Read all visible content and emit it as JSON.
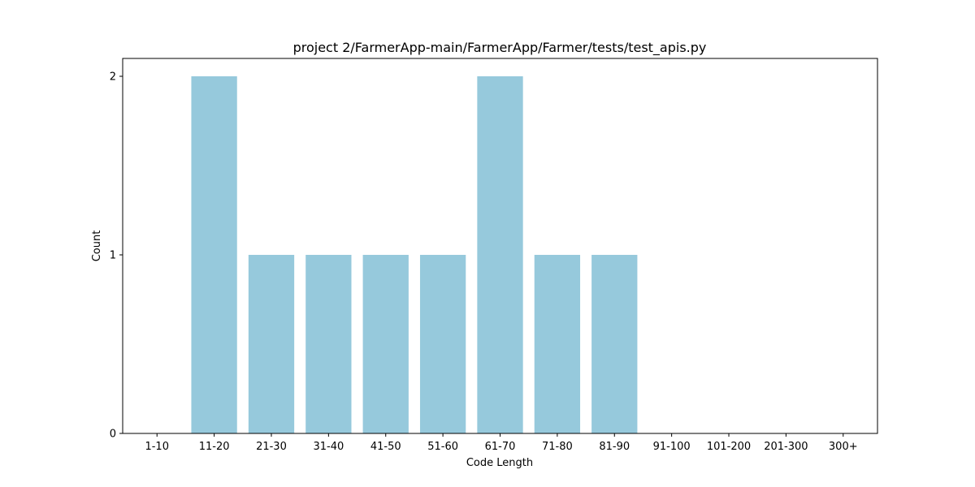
{
  "chart_data": {
    "type": "bar",
    "title": "project 2/FarmerApp-main/FarmerApp/Farmer/tests/test_apis.py",
    "xlabel": "Code Length",
    "ylabel": "Count",
    "categories": [
      "1-10",
      "11-20",
      "21-30",
      "31-40",
      "41-50",
      "51-60",
      "61-70",
      "71-80",
      "81-90",
      "91-100",
      "101-200",
      "201-300",
      "300+"
    ],
    "values": [
      0,
      2,
      1,
      1,
      1,
      1,
      2,
      1,
      1,
      0,
      0,
      0,
      0
    ],
    "ylim": [
      0,
      2.1
    ],
    "yticks": [
      "0",
      "1",
      "2"
    ],
    "grid": false,
    "bar_color": "#96c9dc"
  }
}
